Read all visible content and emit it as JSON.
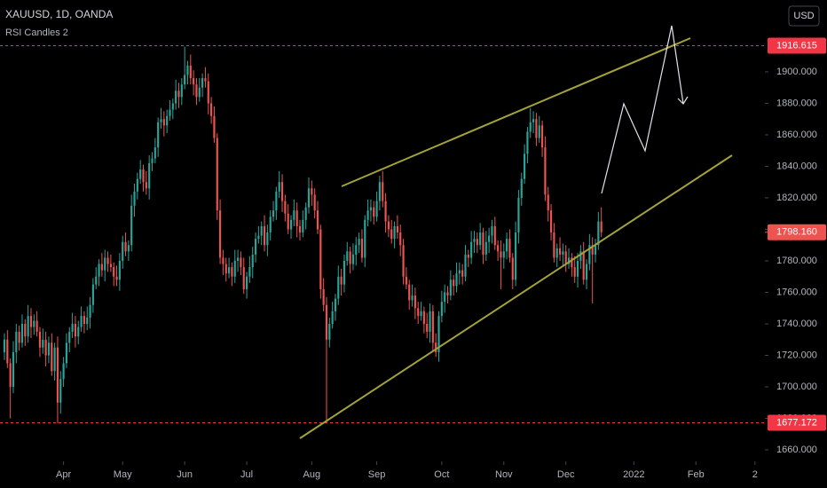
{
  "chart_data": {
    "type": "candlestick",
    "title": "XAUUSD, 1D, OANDA",
    "subtitle": "RSI Candles 2",
    "currency": "USD",
    "up_color": "#26a69a",
    "down_color": "#ef5350",
    "hline_color": "#f23645",
    "xlim": [
      -1.5,
      257.35
    ],
    "ylim": [
      1652.7,
      1945.6
    ],
    "xticks": [
      {
        "value": 20,
        "label": "Apr"
      },
      {
        "value": 40,
        "label": "May"
      },
      {
        "value": 61,
        "label": "Jun"
      },
      {
        "value": 82,
        "label": "Jul"
      },
      {
        "value": 104,
        "label": "Aug"
      },
      {
        "value": 126,
        "label": "Sep"
      },
      {
        "value": 148,
        "label": "Oct"
      },
      {
        "value": 169,
        "label": "Nov"
      },
      {
        "value": 190,
        "label": "Dec"
      },
      {
        "value": 213,
        "label": "2022"
      },
      {
        "value": 234,
        "label": "Feb"
      },
      {
        "value": 254,
        "label": "2"
      }
    ],
    "yticks": [
      {
        "value": 1660,
        "label": "1660.000"
      },
      {
        "value": 1680,
        "label": "1680.000"
      },
      {
        "value": 1700,
        "label": "1700.000"
      },
      {
        "value": 1720,
        "label": "1720.000"
      },
      {
        "value": 1740,
        "label": "1740.000"
      },
      {
        "value": 1760,
        "label": "1760.000"
      },
      {
        "value": 1780,
        "label": "1780.000"
      },
      {
        "value": 1800,
        "label": "1800.000"
      },
      {
        "value": 1820,
        "label": "1820.000"
      },
      {
        "value": 1840,
        "label": "1840.000"
      },
      {
        "value": 1860,
        "label": "1860.000"
      },
      {
        "value": 1880,
        "label": "1880.000"
      },
      {
        "value": 1900,
        "label": "1900.000"
      }
    ],
    "hlines": [
      1916.615,
      1677.172
    ],
    "last_price": {
      "value": 1798.16,
      "label": "1798.160"
    },
    "ohlc": [
      [
        1722,
        1734,
        1717,
        1730
      ],
      [
        1730,
        1736,
        1712,
        1715
      ],
      [
        1715,
        1718,
        1680,
        1700
      ],
      [
        1700,
        1729,
        1696,
        1722
      ],
      [
        1722,
        1740,
        1715,
        1735
      ],
      [
        1735,
        1739,
        1723,
        1728
      ],
      [
        1728,
        1746,
        1725,
        1740
      ],
      [
        1740,
        1743,
        1726,
        1732
      ],
      [
        1732,
        1752,
        1728,
        1745
      ],
      [
        1745,
        1750,
        1731,
        1738
      ],
      [
        1738,
        1746,
        1733,
        1742
      ],
      [
        1742,
        1748,
        1732,
        1735
      ],
      [
        1735,
        1738,
        1719,
        1725
      ],
      [
        1725,
        1737,
        1721,
        1730
      ],
      [
        1730,
        1735,
        1713,
        1720
      ],
      [
        1720,
        1732,
        1715,
        1728
      ],
      [
        1728,
        1734,
        1707,
        1710
      ],
      [
        1710,
        1728,
        1704,
        1725
      ],
      [
        1725,
        1732,
        1677,
        1690
      ],
      [
        1690,
        1710,
        1683,
        1705
      ],
      [
        1705,
        1719,
        1700,
        1715
      ],
      [
        1715,
        1734,
        1712,
        1728
      ],
      [
        1728,
        1738,
        1722,
        1735
      ],
      [
        1735,
        1747,
        1731,
        1740
      ],
      [
        1740,
        1745,
        1725,
        1732
      ],
      [
        1732,
        1742,
        1727,
        1738
      ],
      [
        1738,
        1751,
        1735,
        1745
      ],
      [
        1745,
        1748,
        1734,
        1740
      ],
      [
        1740,
        1751,
        1736,
        1744
      ],
      [
        1744,
        1757,
        1737,
        1752
      ],
      [
        1752,
        1769,
        1747,
        1765
      ],
      [
        1765,
        1776,
        1762,
        1770
      ],
      [
        1770,
        1781,
        1764,
        1778
      ],
      [
        1778,
        1785,
        1770,
        1774
      ],
      [
        1774,
        1787,
        1767,
        1782
      ],
      [
        1782,
        1786,
        1773,
        1778
      ],
      [
        1778,
        1784,
        1773,
        1776
      ],
      [
        1776,
        1779,
        1764,
        1770
      ],
      [
        1770,
        1777,
        1764,
        1768
      ],
      [
        1768,
        1785,
        1761,
        1780
      ],
      [
        1780,
        1796,
        1775,
        1792
      ],
      [
        1792,
        1798,
        1783,
        1786
      ],
      [
        1786,
        1793,
        1780,
        1790
      ],
      [
        1790,
        1822,
        1786,
        1815
      ],
      [
        1815,
        1829,
        1808,
        1824
      ],
      [
        1824,
        1836,
        1819,
        1832
      ],
      [
        1832,
        1844,
        1829,
        1838
      ],
      [
        1838,
        1841,
        1824,
        1830
      ],
      [
        1830,
        1837,
        1822,
        1826
      ],
      [
        1826,
        1847,
        1819,
        1842
      ],
      [
        1842,
        1849,
        1837,
        1845
      ],
      [
        1845,
        1858,
        1842,
        1852
      ],
      [
        1852,
        1871,
        1846,
        1868
      ],
      [
        1868,
        1877,
        1864,
        1870
      ],
      [
        1870,
        1875,
        1859,
        1866
      ],
      [
        1866,
        1876,
        1861,
        1872
      ],
      [
        1872,
        1882,
        1869,
        1876
      ],
      [
        1876,
        1883,
        1870,
        1880
      ],
      [
        1880,
        1895,
        1876,
        1888
      ],
      [
        1888,
        1893,
        1877,
        1884
      ],
      [
        1884,
        1896,
        1879,
        1892
      ],
      [
        1892,
        1916,
        1889,
        1898
      ],
      [
        1898,
        1907,
        1892,
        1904
      ],
      [
        1904,
        1911,
        1892,
        1896
      ],
      [
        1896,
        1901,
        1885,
        1892
      ],
      [
        1892,
        1896,
        1879,
        1884
      ],
      [
        1884,
        1896,
        1881,
        1890
      ],
      [
        1890,
        1899,
        1884,
        1896
      ],
      [
        1896,
        1903,
        1890,
        1894
      ],
      [
        1894,
        1899,
        1873,
        1880
      ],
      [
        1880,
        1884,
        1867,
        1872
      ],
      [
        1872,
        1878,
        1855,
        1858
      ],
      [
        1858,
        1861,
        1806,
        1812
      ],
      [
        1812,
        1819,
        1778,
        1782
      ],
      [
        1782,
        1787,
        1771,
        1778
      ],
      [
        1778,
        1782,
        1767,
        1772
      ],
      [
        1772,
        1782,
        1769,
        1776
      ],
      [
        1776,
        1779,
        1764,
        1770
      ],
      [
        1770,
        1787,
        1766,
        1780
      ],
      [
        1780,
        1787,
        1773,
        1782
      ],
      [
        1782,
        1786,
        1771,
        1776
      ],
      [
        1776,
        1782,
        1759,
        1762
      ],
      [
        1762,
        1773,
        1756,
        1770
      ],
      [
        1770,
        1783,
        1766,
        1776
      ],
      [
        1776,
        1789,
        1769,
        1784
      ],
      [
        1784,
        1798,
        1779,
        1794
      ],
      [
        1794,
        1802,
        1791,
        1796
      ],
      [
        1796,
        1805,
        1790,
        1802
      ],
      [
        1802,
        1809,
        1786,
        1790
      ],
      [
        1790,
        1803,
        1783,
        1798
      ],
      [
        1798,
        1812,
        1793,
        1808
      ],
      [
        1808,
        1818,
        1805,
        1812
      ],
      [
        1812,
        1827,
        1806,
        1824
      ],
      [
        1824,
        1837,
        1820,
        1830
      ],
      [
        1830,
        1835,
        1811,
        1818
      ],
      [
        1818,
        1822,
        1805,
        1810
      ],
      [
        1810,
        1816,
        1797,
        1800
      ],
      [
        1800,
        1809,
        1794,
        1806
      ],
      [
        1806,
        1819,
        1802,
        1812
      ],
      [
        1812,
        1817,
        1795,
        1802
      ],
      [
        1802,
        1806,
        1793,
        1798
      ],
      [
        1798,
        1812,
        1795,
        1806
      ],
      [
        1806,
        1817,
        1800,
        1814
      ],
      [
        1814,
        1833,
        1810,
        1826
      ],
      [
        1826,
        1831,
        1815,
        1822
      ],
      [
        1822,
        1826,
        1807,
        1812
      ],
      [
        1812,
        1818,
        1797,
        1800
      ],
      [
        1800,
        1803,
        1756,
        1762
      ],
      [
        1762,
        1769,
        1748,
        1752
      ],
      [
        1752,
        1757,
        1677,
        1730
      ],
      [
        1730,
        1744,
        1725,
        1740
      ],
      [
        1740,
        1754,
        1737,
        1748
      ],
      [
        1748,
        1759,
        1742,
        1756
      ],
      [
        1756,
        1777,
        1752,
        1770
      ],
      [
        1770,
        1775,
        1758,
        1765
      ],
      [
        1765,
        1784,
        1760,
        1780
      ],
      [
        1780,
        1792,
        1777,
        1786
      ],
      [
        1786,
        1789,
        1772,
        1778
      ],
      [
        1778,
        1791,
        1774,
        1784
      ],
      [
        1784,
        1795,
        1777,
        1790
      ],
      [
        1790,
        1798,
        1785,
        1794
      ],
      [
        1794,
        1800,
        1779,
        1782
      ],
      [
        1782,
        1809,
        1776,
        1806
      ],
      [
        1806,
        1819,
        1802,
        1812
      ],
      [
        1812,
        1819,
        1805,
        1814
      ],
      [
        1814,
        1818,
        1803,
        1808
      ],
      [
        1808,
        1824,
        1805,
        1818
      ],
      [
        1818,
        1834,
        1812,
        1830
      ],
      [
        1830,
        1837,
        1814,
        1818
      ],
      [
        1818,
        1823,
        1798,
        1805
      ],
      [
        1805,
        1809,
        1795,
        1800
      ],
      [
        1800,
        1806,
        1791,
        1794
      ],
      [
        1794,
        1805,
        1788,
        1802
      ],
      [
        1802,
        1809,
        1794,
        1798
      ],
      [
        1798,
        1803,
        1783,
        1790
      ],
      [
        1790,
        1794,
        1765,
        1770
      ],
      [
        1770,
        1776,
        1762,
        1765
      ],
      [
        1765,
        1768,
        1749,
        1755
      ],
      [
        1755,
        1765,
        1751,
        1758
      ],
      [
        1758,
        1763,
        1743,
        1750
      ],
      [
        1750,
        1754,
        1740,
        1745
      ],
      [
        1745,
        1754,
        1742,
        1748
      ],
      [
        1748,
        1751,
        1734,
        1740
      ],
      [
        1740,
        1747,
        1731,
        1735
      ],
      [
        1735,
        1753,
        1728,
        1748
      ],
      [
        1748,
        1752,
        1723,
        1728
      ],
      [
        1728,
        1734,
        1719,
        1722
      ],
      [
        1722,
        1748,
        1716,
        1745
      ],
      [
        1745,
        1761,
        1741,
        1754
      ],
      [
        1754,
        1765,
        1747,
        1760
      ],
      [
        1760,
        1764,
        1753,
        1758
      ],
      [
        1758,
        1774,
        1755,
        1768
      ],
      [
        1768,
        1771,
        1758,
        1764
      ],
      [
        1764,
        1779,
        1760,
        1772
      ],
      [
        1772,
        1779,
        1765,
        1774
      ],
      [
        1774,
        1778,
        1765,
        1770
      ],
      [
        1770,
        1790,
        1767,
        1784
      ],
      [
        1784,
        1787,
        1776,
        1782
      ],
      [
        1782,
        1799,
        1778,
        1792
      ],
      [
        1792,
        1799,
        1785,
        1794
      ],
      [
        1794,
        1798,
        1785,
        1790
      ],
      [
        1790,
        1804,
        1787,
        1798
      ],
      [
        1798,
        1801,
        1778,
        1784
      ],
      [
        1784,
        1799,
        1780,
        1792
      ],
      [
        1792,
        1801,
        1785,
        1796
      ],
      [
        1796,
        1806,
        1791,
        1802
      ],
      [
        1802,
        1808,
        1787,
        1790
      ],
      [
        1790,
        1793,
        1780,
        1786
      ],
      [
        1786,
        1793,
        1762,
        1782
      ],
      [
        1782,
        1791,
        1775,
        1786
      ],
      [
        1786,
        1798,
        1781,
        1794
      ],
      [
        1794,
        1800,
        1779,
        1782
      ],
      [
        1782,
        1785,
        1762,
        1768
      ],
      [
        1768,
        1805,
        1764,
        1798
      ],
      [
        1798,
        1825,
        1791,
        1820
      ],
      [
        1820,
        1836,
        1815,
        1832
      ],
      [
        1832,
        1854,
        1829,
        1848
      ],
      [
        1848,
        1865,
        1842,
        1862
      ],
      [
        1862,
        1877,
        1858,
        1868
      ],
      [
        1868,
        1875,
        1861,
        1870
      ],
      [
        1870,
        1874,
        1853,
        1858
      ],
      [
        1858,
        1872,
        1855,
        1866
      ],
      [
        1866,
        1869,
        1846,
        1852
      ],
      [
        1852,
        1859,
        1818,
        1822
      ],
      [
        1822,
        1827,
        1805,
        1812
      ],
      [
        1812,
        1816,
        1793,
        1798
      ],
      [
        1798,
        1804,
        1779,
        1782
      ],
      [
        1782,
        1791,
        1776,
        1788
      ],
      [
        1788,
        1795,
        1780,
        1784
      ],
      [
        1784,
        1791,
        1777,
        1786
      ],
      [
        1786,
        1790,
        1773,
        1778
      ],
      [
        1778,
        1788,
        1775,
        1782
      ],
      [
        1782,
        1785,
        1770,
        1776
      ],
      [
        1776,
        1783,
        1766,
        1770
      ],
      [
        1770,
        1785,
        1763,
        1780
      ],
      [
        1780,
        1790,
        1775,
        1786
      ],
      [
        1786,
        1792,
        1765,
        1768
      ],
      [
        1768,
        1781,
        1762,
        1778
      ],
      [
        1778,
        1797,
        1774,
        1790
      ],
      [
        1790,
        1795,
        1753,
        1784
      ],
      [
        1784,
        1794,
        1779,
        1790
      ],
      [
        1790,
        1811,
        1787,
        1805
      ],
      [
        1805,
        1814,
        1795,
        1798.16
      ]
    ]
  }
}
